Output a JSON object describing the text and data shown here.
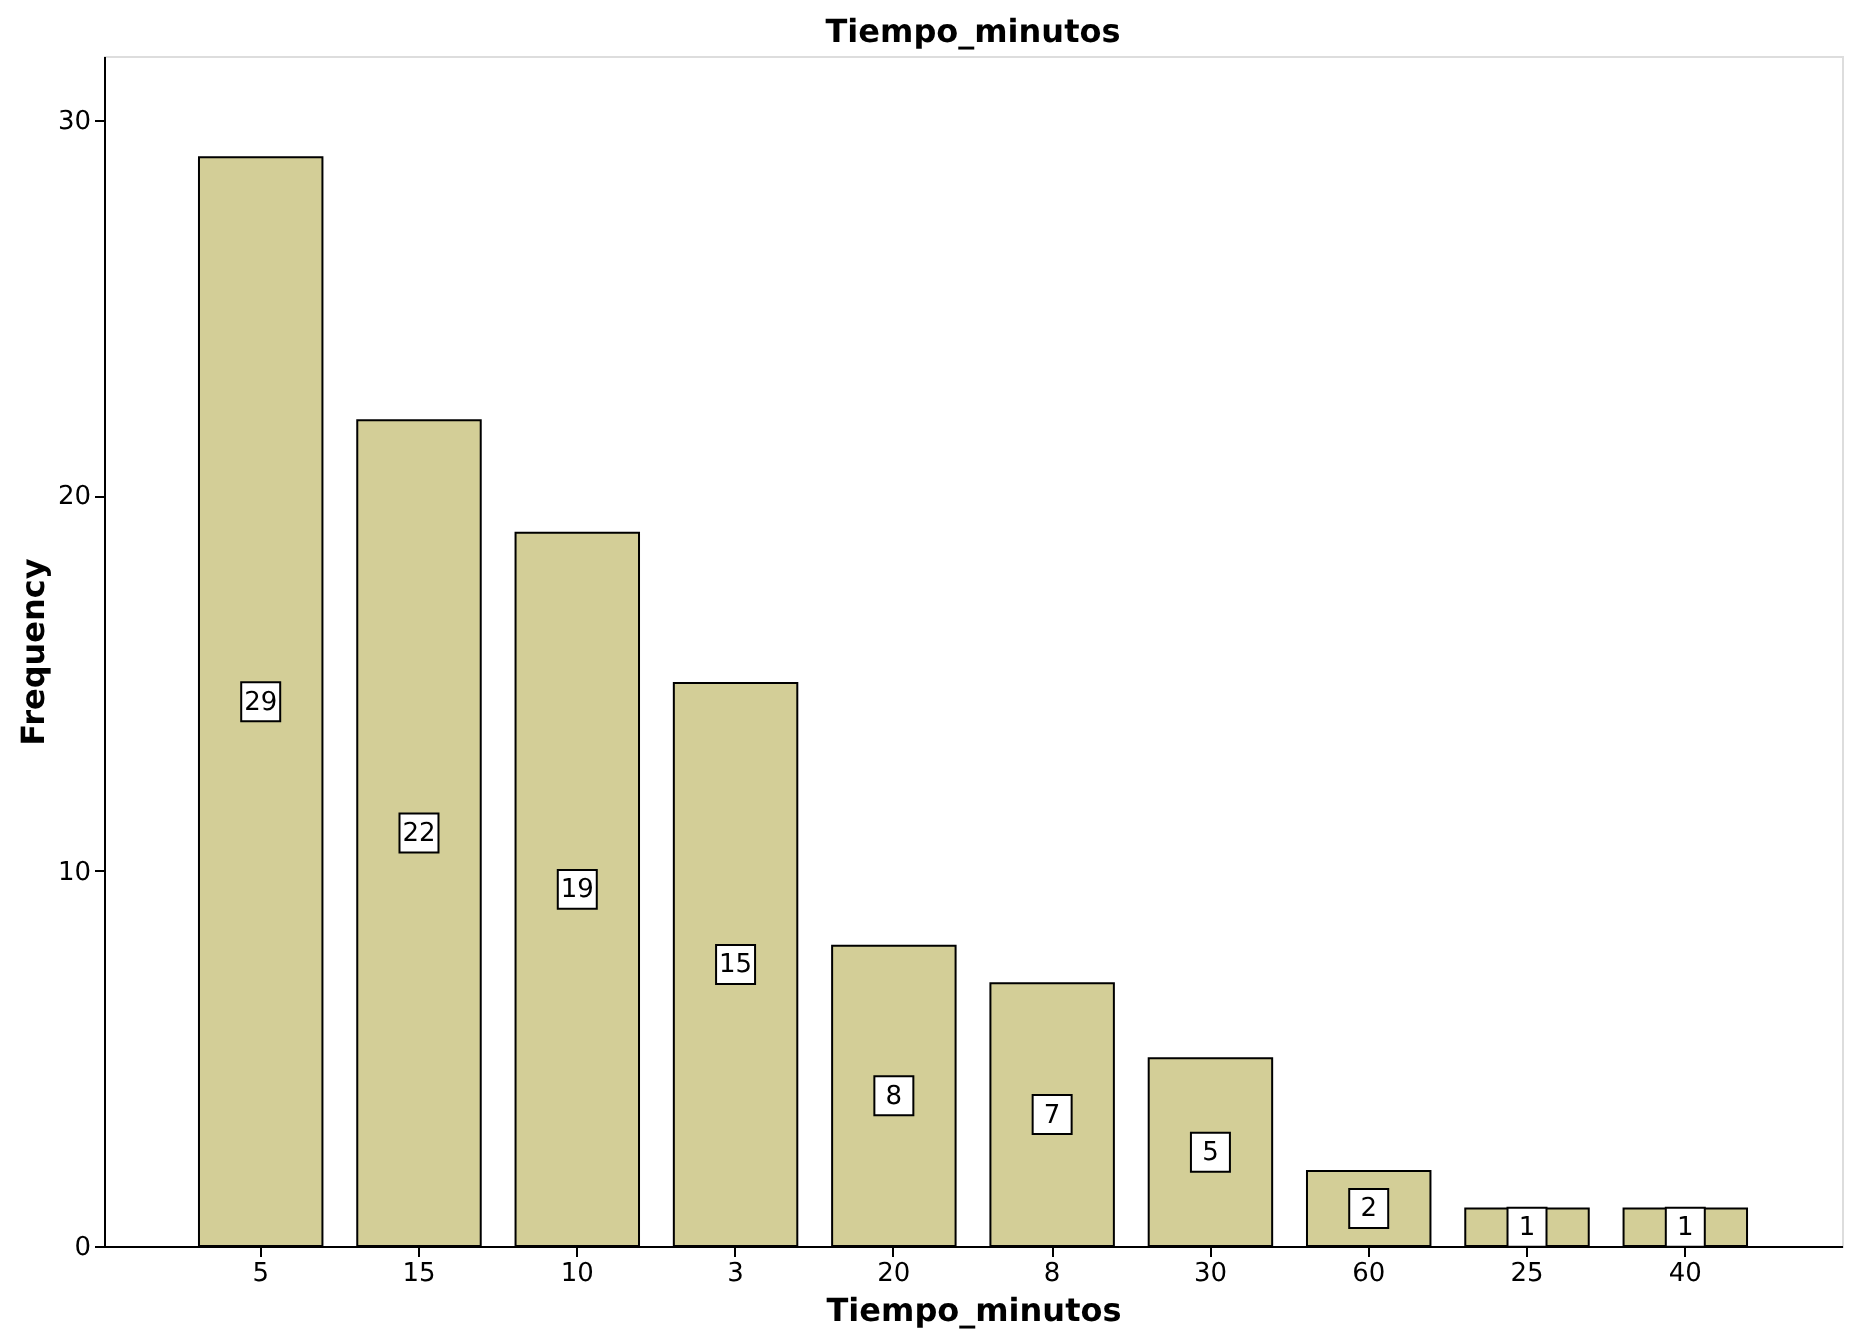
{
  "chart_data": {
    "type": "bar",
    "title": "Tiempo_minutos",
    "xlabel": "Tiempo_minutos",
    "ylabel": "Frequency",
    "categories": [
      "5",
      "15",
      "10",
      "3",
      "20",
      "8",
      "30",
      "60",
      "25",
      "40"
    ],
    "values": [
      29,
      22,
      19,
      15,
      8,
      7,
      5,
      2,
      1,
      1
    ],
    "color": "#d3ce97",
    "ylim": [
      0,
      31.7
    ],
    "yticks": [
      0,
      10,
      20,
      30
    ],
    "grid": false,
    "data_labels": true
  }
}
